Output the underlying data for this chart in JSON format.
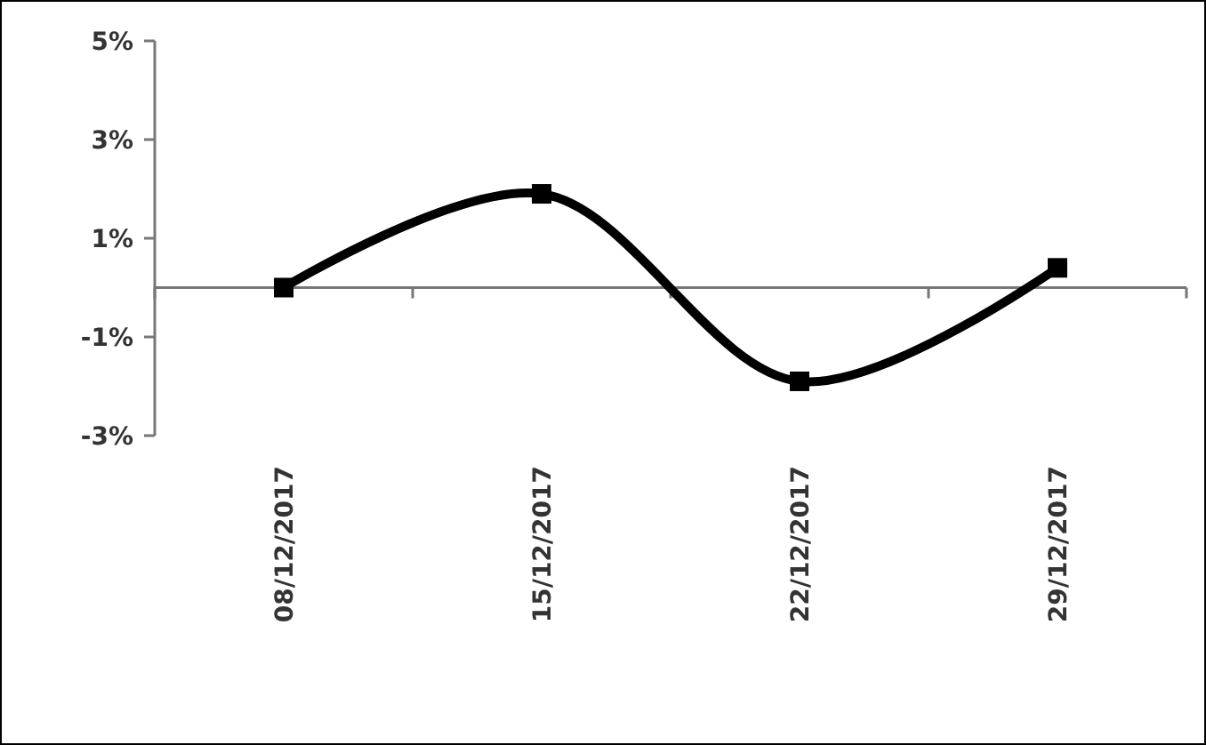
{
  "chart_data": {
    "type": "line",
    "categories": [
      "08/12/2017",
      "15/12/2017",
      "22/12/2017",
      "29/12/2017"
    ],
    "series": [
      {
        "color": "#000000",
        "values": [
          0,
          1.9,
          -1.9,
          0.4
        ]
      }
    ],
    "ylim": [
      -3,
      5
    ],
    "yticks": [
      {
        "value": -3,
        "label": "-3%"
      },
      {
        "value": -1,
        "label": "-1%"
      },
      {
        "value": 1,
        "label": "1%"
      },
      {
        "value": 3,
        "label": "3%"
      },
      {
        "value": 5,
        "label": "5%"
      }
    ],
    "marker": "square",
    "line_style": "solid",
    "grid": false,
    "legend": false
  }
}
